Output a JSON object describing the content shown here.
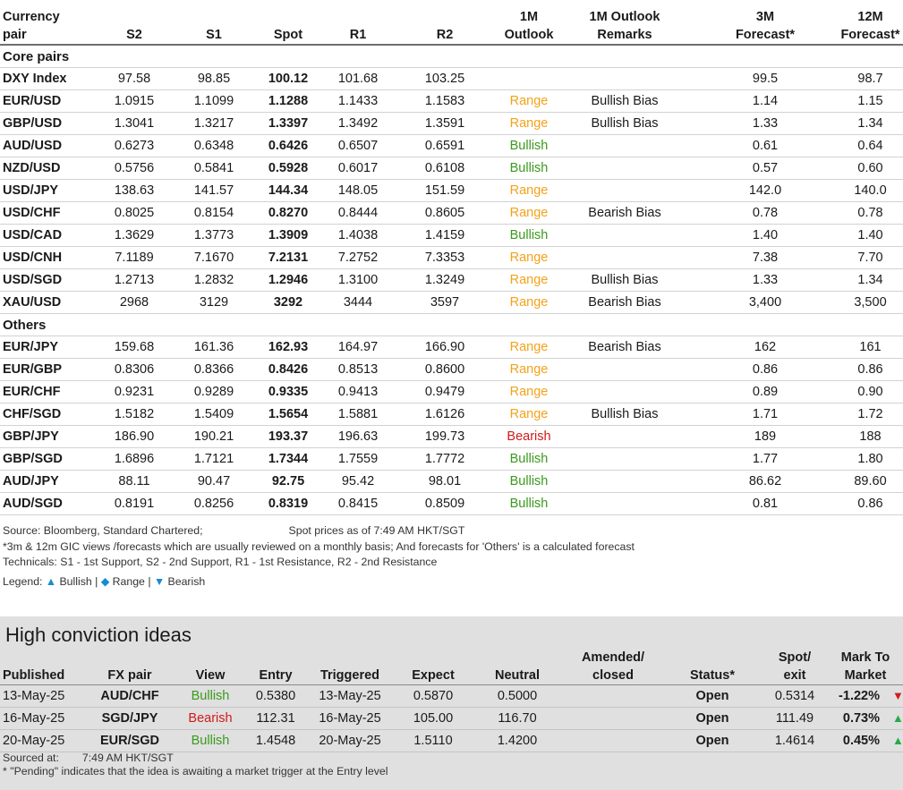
{
  "forecast_table": {
    "headers": {
      "pair_line1": "Currency",
      "pair_line2": "pair",
      "s2": "S2",
      "s1": "S1",
      "spot": "Spot",
      "r1": "R1",
      "r2": "R2",
      "outlook_line1": "1M",
      "outlook_line2": "Outlook",
      "remarks_line1": "1M Outlook",
      "remarks_line2": "Remarks",
      "f3m_line1": "3M",
      "f3m_line2": "Forecast*",
      "f12m_line1": "12M",
      "f12m_line2": "Forecast*"
    },
    "sections": [
      {
        "title": "Core pairs",
        "rows": [
          {
            "pair": "DXY Index",
            "s2": "97.58",
            "s1": "98.85",
            "spot": "100.12",
            "r1": "101.68",
            "r2": "103.25",
            "outlook": "",
            "remarks": "",
            "f3m": "99.5",
            "f12m": "98.7"
          },
          {
            "pair": "EUR/USD",
            "s2": "1.0915",
            "s1": "1.1099",
            "spot": "1.1288",
            "r1": "1.1433",
            "r2": "1.1583",
            "outlook": "Range",
            "remarks": "Bullish Bias",
            "f3m": "1.14",
            "f12m": "1.15"
          },
          {
            "pair": "GBP/USD",
            "s2": "1.3041",
            "s1": "1.3217",
            "spot": "1.3397",
            "r1": "1.3492",
            "r2": "1.3591",
            "outlook": "Range",
            "remarks": "Bullish Bias",
            "f3m": "1.33",
            "f12m": "1.34"
          },
          {
            "pair": "AUD/USD",
            "s2": "0.6273",
            "s1": "0.6348",
            "spot": "0.6426",
            "r1": "0.6507",
            "r2": "0.6591",
            "outlook": "Bullish",
            "remarks": "",
            "f3m": "0.61",
            "f12m": "0.64"
          },
          {
            "pair": "NZD/USD",
            "s2": "0.5756",
            "s1": "0.5841",
            "spot": "0.5928",
            "r1": "0.6017",
            "r2": "0.6108",
            "outlook": "Bullish",
            "remarks": "",
            "f3m": "0.57",
            "f12m": "0.60"
          },
          {
            "pair": "USD/JPY",
            "s2": "138.63",
            "s1": "141.57",
            "spot": "144.34",
            "r1": "148.05",
            "r2": "151.59",
            "outlook": "Range",
            "remarks": "",
            "f3m": "142.0",
            "f12m": "140.0"
          },
          {
            "pair": "USD/CHF",
            "s2": "0.8025",
            "s1": "0.8154",
            "spot": "0.8270",
            "r1": "0.8444",
            "r2": "0.8605",
            "outlook": "Range",
            "remarks": "Bearish Bias",
            "f3m": "0.78",
            "f12m": "0.78"
          },
          {
            "pair": "USD/CAD",
            "s2": "1.3629",
            "s1": "1.3773",
            "spot": "1.3909",
            "r1": "1.4038",
            "r2": "1.4159",
            "outlook": "Bullish",
            "remarks": "",
            "f3m": "1.40",
            "f12m": "1.40"
          },
          {
            "pair": "USD/CNH",
            "s2": "7.1189",
            "s1": "7.1670",
            "spot": "7.2131",
            "r1": "7.2752",
            "r2": "7.3353",
            "outlook": "Range",
            "remarks": "",
            "f3m": "7.38",
            "f12m": "7.70"
          },
          {
            "pair": "USD/SGD",
            "s2": "1.2713",
            "s1": "1.2832",
            "spot": "1.2946",
            "r1": "1.3100",
            "r2": "1.3249",
            "outlook": "Range",
            "remarks": "Bullish Bias",
            "f3m": "1.33",
            "f12m": "1.34"
          },
          {
            "pair": "XAU/USD",
            "s2": "2968",
            "s1": "3129",
            "spot": "3292",
            "r1": "3444",
            "r2": "3597",
            "outlook": "Range",
            "remarks": "Bearish Bias",
            "f3m": "3,400",
            "f12m": "3,500"
          }
        ]
      },
      {
        "title": "Others",
        "rows": [
          {
            "pair": "EUR/JPY",
            "s2": "159.68",
            "s1": "161.36",
            "spot": "162.93",
            "r1": "164.97",
            "r2": "166.90",
            "outlook": "Range",
            "remarks": "Bearish Bias",
            "f3m": "162",
            "f12m": "161"
          },
          {
            "pair": "EUR/GBP",
            "s2": "0.8306",
            "s1": "0.8366",
            "spot": "0.8426",
            "r1": "0.8513",
            "r2": "0.8600",
            "outlook": "Range",
            "remarks": "",
            "f3m": "0.86",
            "f12m": "0.86"
          },
          {
            "pair": "EUR/CHF",
            "s2": "0.9231",
            "s1": "0.9289",
            "spot": "0.9335",
            "r1": "0.9413",
            "r2": "0.9479",
            "outlook": "Range",
            "remarks": "",
            "f3m": "0.89",
            "f12m": "0.90"
          },
          {
            "pair": "CHF/SGD",
            "s2": "1.5182",
            "s1": "1.5409",
            "spot": "1.5654",
            "r1": "1.5881",
            "r2": "1.6126",
            "outlook": "Range",
            "remarks": "Bullish Bias",
            "f3m": "1.71",
            "f12m": "1.72"
          },
          {
            "pair": "GBP/JPY",
            "s2": "186.90",
            "s1": "190.21",
            "spot": "193.37",
            "r1": "196.63",
            "r2": "199.73",
            "outlook": "Bearish",
            "remarks": "",
            "f3m": "189",
            "f12m": "188"
          },
          {
            "pair": "GBP/SGD",
            "s2": "1.6896",
            "s1": "1.7121",
            "spot": "1.7344",
            "r1": "1.7559",
            "r2": "1.7772",
            "outlook": "Bullish",
            "remarks": "",
            "f3m": "1.77",
            "f12m": "1.80"
          },
          {
            "pair": "AUD/JPY",
            "s2": "88.11",
            "s1": "90.47",
            "spot": "92.75",
            "r1": "95.42",
            "r2": "98.01",
            "outlook": "Bullish",
            "remarks": "",
            "f3m": "86.62",
            "f12m": "89.60"
          },
          {
            "pair": "AUD/SGD",
            "s2": "0.8191",
            "s1": "0.8256",
            "spot": "0.8319",
            "r1": "0.8415",
            "r2": "0.8509",
            "outlook": "Bullish",
            "remarks": "",
            "f3m": "0.81",
            "f12m": "0.86"
          }
        ]
      }
    ]
  },
  "notes": {
    "source": "Source: Bloomberg, Standard Chartered;",
    "spot_time": "Spot prices as of 7:49 AM HKT/SGT",
    "footnote": "*3m & 12m GIC views /forecasts which are usually reviewed on a monthly basis; And forecasts for 'Others' is a calculated forecast",
    "technicals": "Technicals: S1 - 1st Support, S2 - 2nd Support, R1 - 1st Resistance, R2 - 2nd Resistance",
    "legend_label": "Legend:",
    "legend_bullish": "Bullish",
    "legend_range": "Range",
    "legend_bearish": "Bearish",
    "legend_sep": "|"
  },
  "high_conviction": {
    "title": "High conviction ideas",
    "headers": {
      "published": "Published",
      "pair": "FX pair",
      "view": "View",
      "entry": "Entry",
      "triggered": "Triggered",
      "expect": "Expect",
      "neutral": "Neutral",
      "amended_line1": "Amended/",
      "amended_line2": "closed",
      "status": "Status*",
      "spot_line1": "Spot/",
      "spot_line2": "exit",
      "mtm_line1": "Mark To",
      "mtm_line2": "Market"
    },
    "rows": [
      {
        "published": "13-May-25",
        "pair": "AUD/CHF",
        "view": "Bullish",
        "entry": "0.5380",
        "triggered": "13-May-25",
        "expect": "0.5870",
        "neutral": "0.5000",
        "amended": "",
        "status": "Open",
        "spot": "0.5314",
        "mtm": "-1.22%",
        "direction": "down"
      },
      {
        "published": "16-May-25",
        "pair": "SGD/JPY",
        "view": "Bearish",
        "entry": "112.31",
        "triggered": "16-May-25",
        "expect": "105.00",
        "neutral": "116.70",
        "amended": "",
        "status": "Open",
        "spot": "111.49",
        "mtm": "0.73%",
        "direction": "up"
      },
      {
        "published": "20-May-25",
        "pair": "EUR/SGD",
        "view": "Bullish",
        "entry": "1.4548",
        "triggered": "20-May-25",
        "expect": "1.5110",
        "neutral": "1.4200",
        "amended": "",
        "status": "Open",
        "spot": "1.4614",
        "mtm": "0.45%",
        "direction": "up"
      }
    ],
    "sourced_label": "Sourced at:",
    "sourced_time": "7:49 AM HKT/SGT",
    "pending_note": "* \"Pending\" indicates that the idea is awaiting a market trigger at the Entry level"
  },
  "colors": {
    "bullish": "#3a9a1d",
    "range": "#f3a21a",
    "bearish": "#d11a1a",
    "legend_icon": "#1a8ad0",
    "panel_bg": "#e0e0e0"
  },
  "icons": {
    "legend_bullish": "triangle-up-icon",
    "legend_range": "diamond-icon",
    "legend_bearish": "triangle-down-icon",
    "mtm_up": "triangle-up-icon",
    "mtm_down": "triangle-down-icon"
  }
}
